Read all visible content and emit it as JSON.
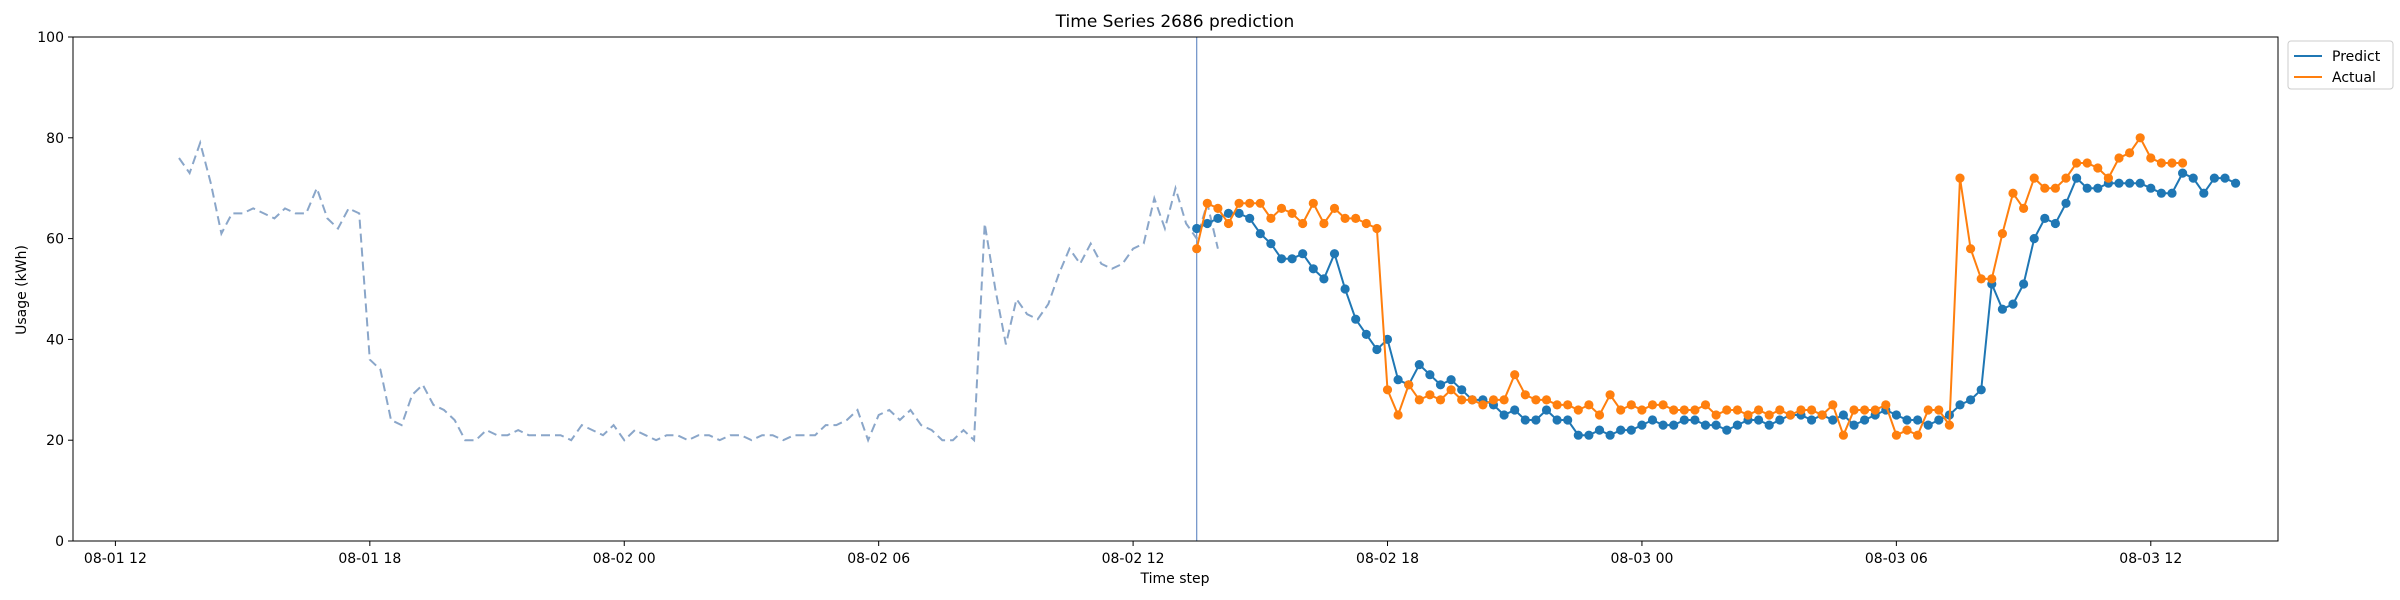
{
  "chart_data": {
    "type": "line",
    "title": "Time Series 2686 prediction",
    "xlabel": "Time step",
    "ylabel": "Usage (kWh)",
    "ylim": [
      0,
      100
    ],
    "yticks": [
      0,
      20,
      40,
      60,
      80,
      100
    ],
    "xlim": [
      "2023-08-01 11:00",
      "2023-08-03 15:00"
    ],
    "xticks": [
      {
        "t": "2023-08-01 12:00",
        "label": "08-01 12"
      },
      {
        "t": "2023-08-01 18:00",
        "label": "08-01 18"
      },
      {
        "t": "2023-08-02 00:00",
        "label": "08-02 00"
      },
      {
        "t": "2023-08-02 06:00",
        "label": "08-02 06"
      },
      {
        "t": "2023-08-02 12:00",
        "label": "08-02 12"
      },
      {
        "t": "2023-08-02 18:00",
        "label": "08-02 18"
      },
      {
        "t": "2023-08-03 00:00",
        "label": "08-03 00"
      },
      {
        "t": "2023-08-03 06:00",
        "label": "08-03 06"
      },
      {
        "t": "2023-08-03 12:00",
        "label": "08-03 12"
      }
    ],
    "grid": false,
    "legend_position": "outside-top-right",
    "split_time": "2023-08-02 13:30",
    "history": {
      "start": "2023-08-01 13:30",
      "interval_minutes": 15,
      "values": [
        76,
        73,
        79,
        71,
        61,
        65,
        65,
        66,
        65,
        64,
        66,
        65,
        65,
        70,
        64,
        62,
        66,
        65,
        36,
        34,
        24,
        23,
        29,
        31,
        27,
        26,
        24,
        20,
        20,
        22,
        21,
        21,
        22,
        21,
        21,
        21,
        21,
        20,
        23,
        22,
        21,
        23,
        20,
        22,
        21,
        20,
        21,
        21,
        20,
        21,
        21,
        20,
        21,
        21,
        20,
        21,
        21,
        20,
        21,
        21,
        21,
        23,
        23,
        24,
        26,
        20,
        25,
        26,
        24,
        26,
        23,
        22,
        20,
        20,
        22,
        20,
        63,
        50,
        39,
        48,
        45,
        44,
        47,
        53,
        58,
        55,
        59,
        55,
        54,
        55,
        58,
        59,
        68,
        62,
        70,
        63,
        60,
        67,
        58
      ]
    },
    "series": [
      {
        "name": "Predict",
        "color": "#1f77b4",
        "start": "2023-08-02 13:30",
        "interval_minutes": 15,
        "values": [
          62,
          63,
          64,
          65,
          65,
          64,
          61,
          59,
          56,
          56,
          57,
          54,
          52,
          57,
          50,
          44,
          41,
          38,
          40,
          32,
          31,
          35,
          33,
          31,
          32,
          30,
          28,
          28,
          27,
          25,
          26,
          24,
          24,
          26,
          24,
          24,
          21,
          21,
          22,
          21,
          22,
          22,
          23,
          24,
          23,
          23,
          24,
          24,
          23,
          23,
          22,
          23,
          24,
          24,
          23,
          24,
          25,
          25,
          24,
          25,
          24,
          25,
          23,
          24,
          25,
          26,
          25,
          24,
          24,
          23,
          24,
          25,
          27,
          28,
          30,
          51,
          46,
          47,
          51,
          60,
          64,
          63,
          67,
          72,
          70,
          70,
          71,
          71,
          71,
          71,
          70,
          69,
          69,
          73,
          72,
          69,
          72,
          72,
          71
        ]
      },
      {
        "name": "Actual",
        "color": "#ff7f0e",
        "start": "2023-08-02 13:30",
        "interval_minutes": 15,
        "values": [
          58,
          67,
          66,
          63,
          67,
          67,
          67,
          64,
          66,
          65,
          63,
          67,
          63,
          66,
          64,
          64,
          63,
          62,
          30,
          25,
          31,
          28,
          29,
          28,
          30,
          28,
          28,
          27,
          28,
          28,
          33,
          29,
          28,
          28,
          27,
          27,
          26,
          27,
          25,
          29,
          26,
          27,
          26,
          27,
          27,
          26,
          26,
          26,
          27,
          25,
          26,
          26,
          25,
          26,
          25,
          26,
          25,
          26,
          26,
          25,
          27,
          21,
          26,
          26,
          26,
          27,
          21,
          22,
          21,
          26,
          26,
          23,
          72,
          58,
          52,
          52,
          61,
          69,
          66,
          72,
          70,
          70,
          72,
          75,
          75,
          74,
          72,
          76,
          77,
          80,
          76,
          75,
          75,
          75
        ]
      }
    ]
  }
}
